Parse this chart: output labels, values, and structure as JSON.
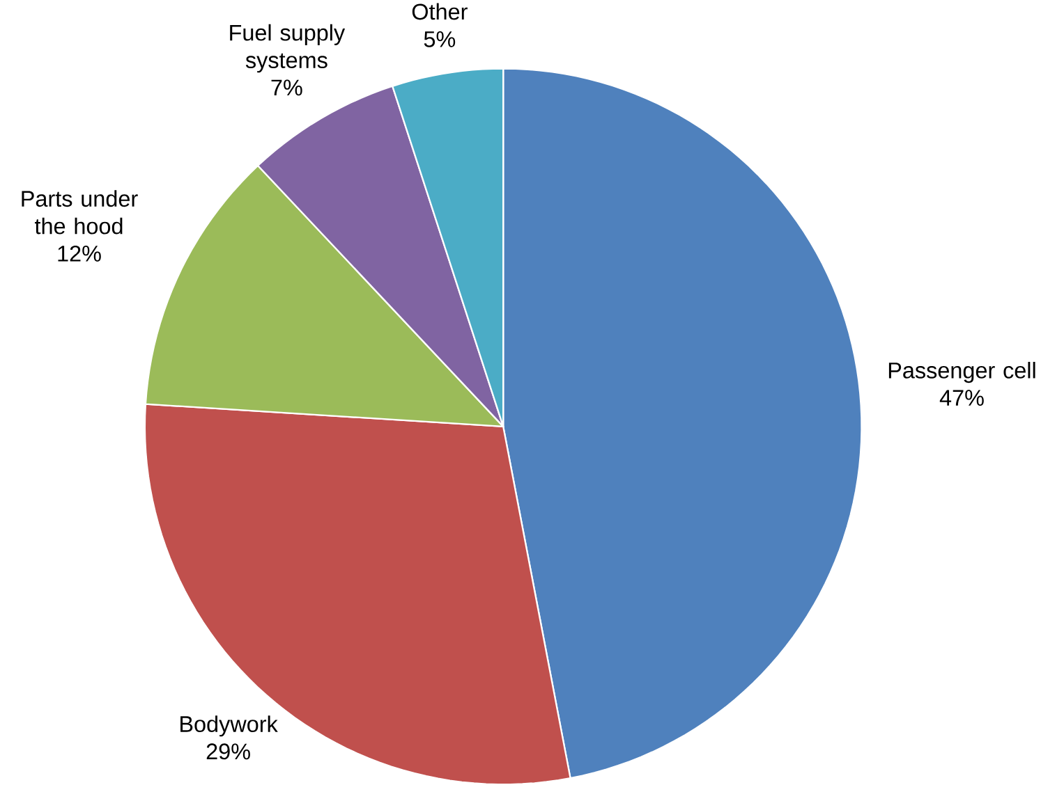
{
  "chart_data": {
    "type": "pie",
    "categories": [
      "Passenger cell",
      "Bodywork",
      "Parts under the hood",
      "Fuel supply systems",
      "Other"
    ],
    "values": [
      47,
      29,
      12,
      7,
      5
    ],
    "value_labels": [
      "47%",
      "29%",
      "12%",
      "7%",
      "5%"
    ],
    "colors": [
      "#4f81bd",
      "#c0504d",
      "#9bbb59",
      "#8064a2",
      "#4bacc6"
    ]
  }
}
